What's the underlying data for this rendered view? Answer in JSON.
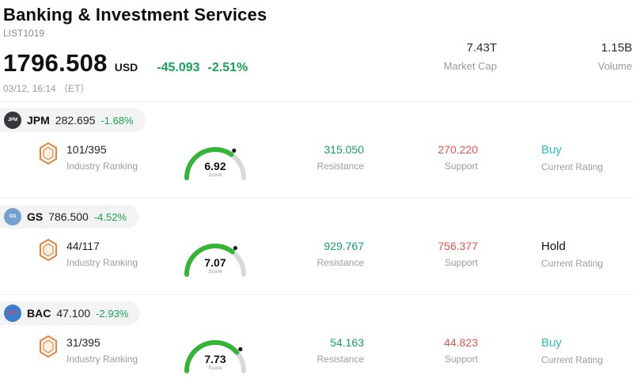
{
  "colors": {
    "change_green": "#19a356",
    "resistance_green": "#13a06b",
    "support_red": "#e8544e",
    "buy_teal": "#2cc0c0",
    "hold_dark": "#111111",
    "gauge_green": "#35b535",
    "gauge_track": "#d8d8d8",
    "badge_orange": "#e8833a",
    "pill_gray": "#f3f3f3"
  },
  "header": {
    "title": "Banking & Investment Services",
    "list_id": "LIST1019",
    "price": "1796.508",
    "currency": "USD",
    "change": "-45.093",
    "change_pct": "-2.51%",
    "timestamp": "03/12, 16:14 （ET）",
    "market_cap": {
      "value": "7.43T",
      "label": "Market Cap"
    },
    "volume": {
      "value": "1.15B",
      "label": "Volume"
    }
  },
  "labels": {
    "industry_ranking": "Industry Ranking",
    "score": "Score",
    "resistance": "Resistance",
    "support": "Support",
    "current_rating": "Current Rating"
  },
  "stocks": [
    {
      "ticker": "JPM",
      "price": "282.695",
      "change": "-1.68%",
      "logo": {
        "bg": "#33363b",
        "fg": "#ffffff",
        "text": "JPM"
      },
      "ranking": "101/395",
      "score": "6.92",
      "resistance": "315.050",
      "support": "270.220",
      "rating": "Buy",
      "rating_color": "#2cc0c0"
    },
    {
      "ticker": "GS",
      "price": "786.500",
      "change": "-4.52%",
      "logo": {
        "bg": "#74a0d0",
        "fg": "#ffffff",
        "text": "GS"
      },
      "ranking": "44/117",
      "score": "7.07",
      "resistance": "929.767",
      "support": "756.377",
      "rating": "Hold",
      "rating_color": "#111111"
    },
    {
      "ticker": "BAC",
      "price": "47.100",
      "change": "-2.93%",
      "logo": {
        "bg": "#3b7ed0",
        "fg": "#e84040",
        "text": "BAC"
      },
      "ranking": "31/395",
      "score": "7.73",
      "resistance": "54.163",
      "support": "44.823",
      "rating": "Buy",
      "rating_color": "#2cc0c0"
    }
  ]
}
